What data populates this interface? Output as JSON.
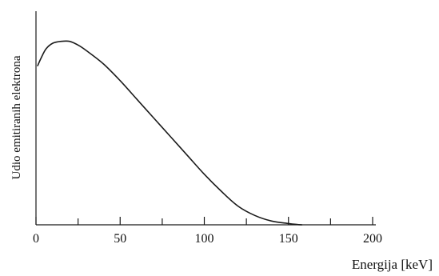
{
  "chart_data": {
    "type": "line",
    "title": "",
    "xlabel": "Energija [keV]",
    "ylabel": "Udio emitiranih elektrona",
    "xlim": [
      0,
      200
    ],
    "x_ticks": [
      0,
      50,
      100,
      150,
      200
    ],
    "x_tick_labels": [
      "0",
      "50",
      "100",
      "150",
      "200"
    ],
    "x_minor_ticks": [
      25,
      75,
      125,
      175
    ],
    "y_ticks": [],
    "grid": false,
    "legend": "none",
    "line_color": "#1a1a1a",
    "series": [
      {
        "x": [
          1,
          3,
          6,
          10,
          15,
          20,
          25,
          30,
          40,
          50,
          60,
          70,
          80,
          90,
          100,
          110,
          120,
          130,
          140,
          150,
          155,
          158
        ],
        "y": [
          0.85,
          0.89,
          0.94,
          0.97,
          0.98,
          0.98,
          0.96,
          0.93,
          0.86,
          0.77,
          0.67,
          0.57,
          0.47,
          0.37,
          0.27,
          0.18,
          0.1,
          0.05,
          0.02,
          0.007,
          0.002,
          0.0
        ]
      }
    ]
  }
}
